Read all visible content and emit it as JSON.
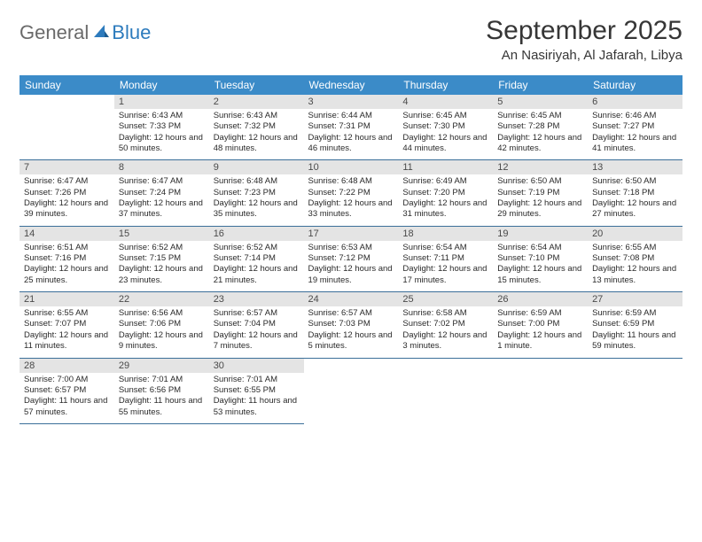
{
  "logo": {
    "general": "General",
    "blue": "Blue"
  },
  "title": "September 2025",
  "location": "An Nasiriyah, Al Jafarah, Libya",
  "columns": [
    "Sunday",
    "Monday",
    "Tuesday",
    "Wednesday",
    "Thursday",
    "Friday",
    "Saturday"
  ],
  "colors": {
    "header_bg": "#3b8bc8",
    "header_fg": "#ffffff",
    "daynum_bg": "#e4e4e4",
    "rule": "#3b6f99",
    "logo_blue": "#2d7bbd",
    "logo_gray": "#6a6a6a"
  },
  "start_day_index": 1,
  "days": [
    {
      "n": 1,
      "sr": "6:43 AM",
      "ss": "7:33 PM",
      "dl": "12 hours and 50 minutes."
    },
    {
      "n": 2,
      "sr": "6:43 AM",
      "ss": "7:32 PM",
      "dl": "12 hours and 48 minutes."
    },
    {
      "n": 3,
      "sr": "6:44 AM",
      "ss": "7:31 PM",
      "dl": "12 hours and 46 minutes."
    },
    {
      "n": 4,
      "sr": "6:45 AM",
      "ss": "7:30 PM",
      "dl": "12 hours and 44 minutes."
    },
    {
      "n": 5,
      "sr": "6:45 AM",
      "ss": "7:28 PM",
      "dl": "12 hours and 42 minutes."
    },
    {
      "n": 6,
      "sr": "6:46 AM",
      "ss": "7:27 PM",
      "dl": "12 hours and 41 minutes."
    },
    {
      "n": 7,
      "sr": "6:47 AM",
      "ss": "7:26 PM",
      "dl": "12 hours and 39 minutes."
    },
    {
      "n": 8,
      "sr": "6:47 AM",
      "ss": "7:24 PM",
      "dl": "12 hours and 37 minutes."
    },
    {
      "n": 9,
      "sr": "6:48 AM",
      "ss": "7:23 PM",
      "dl": "12 hours and 35 minutes."
    },
    {
      "n": 10,
      "sr": "6:48 AM",
      "ss": "7:22 PM",
      "dl": "12 hours and 33 minutes."
    },
    {
      "n": 11,
      "sr": "6:49 AM",
      "ss": "7:20 PM",
      "dl": "12 hours and 31 minutes."
    },
    {
      "n": 12,
      "sr": "6:50 AM",
      "ss": "7:19 PM",
      "dl": "12 hours and 29 minutes."
    },
    {
      "n": 13,
      "sr": "6:50 AM",
      "ss": "7:18 PM",
      "dl": "12 hours and 27 minutes."
    },
    {
      "n": 14,
      "sr": "6:51 AM",
      "ss": "7:16 PM",
      "dl": "12 hours and 25 minutes."
    },
    {
      "n": 15,
      "sr": "6:52 AM",
      "ss": "7:15 PM",
      "dl": "12 hours and 23 minutes."
    },
    {
      "n": 16,
      "sr": "6:52 AM",
      "ss": "7:14 PM",
      "dl": "12 hours and 21 minutes."
    },
    {
      "n": 17,
      "sr": "6:53 AM",
      "ss": "7:12 PM",
      "dl": "12 hours and 19 minutes."
    },
    {
      "n": 18,
      "sr": "6:54 AM",
      "ss": "7:11 PM",
      "dl": "12 hours and 17 minutes."
    },
    {
      "n": 19,
      "sr": "6:54 AM",
      "ss": "7:10 PM",
      "dl": "12 hours and 15 minutes."
    },
    {
      "n": 20,
      "sr": "6:55 AM",
      "ss": "7:08 PM",
      "dl": "12 hours and 13 minutes."
    },
    {
      "n": 21,
      "sr": "6:55 AM",
      "ss": "7:07 PM",
      "dl": "12 hours and 11 minutes."
    },
    {
      "n": 22,
      "sr": "6:56 AM",
      "ss": "7:06 PM",
      "dl": "12 hours and 9 minutes."
    },
    {
      "n": 23,
      "sr": "6:57 AM",
      "ss": "7:04 PM",
      "dl": "12 hours and 7 minutes."
    },
    {
      "n": 24,
      "sr": "6:57 AM",
      "ss": "7:03 PM",
      "dl": "12 hours and 5 minutes."
    },
    {
      "n": 25,
      "sr": "6:58 AM",
      "ss": "7:02 PM",
      "dl": "12 hours and 3 minutes."
    },
    {
      "n": 26,
      "sr": "6:59 AM",
      "ss": "7:00 PM",
      "dl": "12 hours and 1 minute."
    },
    {
      "n": 27,
      "sr": "6:59 AM",
      "ss": "6:59 PM",
      "dl": "11 hours and 59 minutes."
    },
    {
      "n": 28,
      "sr": "7:00 AM",
      "ss": "6:57 PM",
      "dl": "11 hours and 57 minutes."
    },
    {
      "n": 29,
      "sr": "7:01 AM",
      "ss": "6:56 PM",
      "dl": "11 hours and 55 minutes."
    },
    {
      "n": 30,
      "sr": "7:01 AM",
      "ss": "6:55 PM",
      "dl": "11 hours and 53 minutes."
    }
  ],
  "labels": {
    "sunrise": "Sunrise:",
    "sunset": "Sunset:",
    "daylight": "Daylight:"
  }
}
